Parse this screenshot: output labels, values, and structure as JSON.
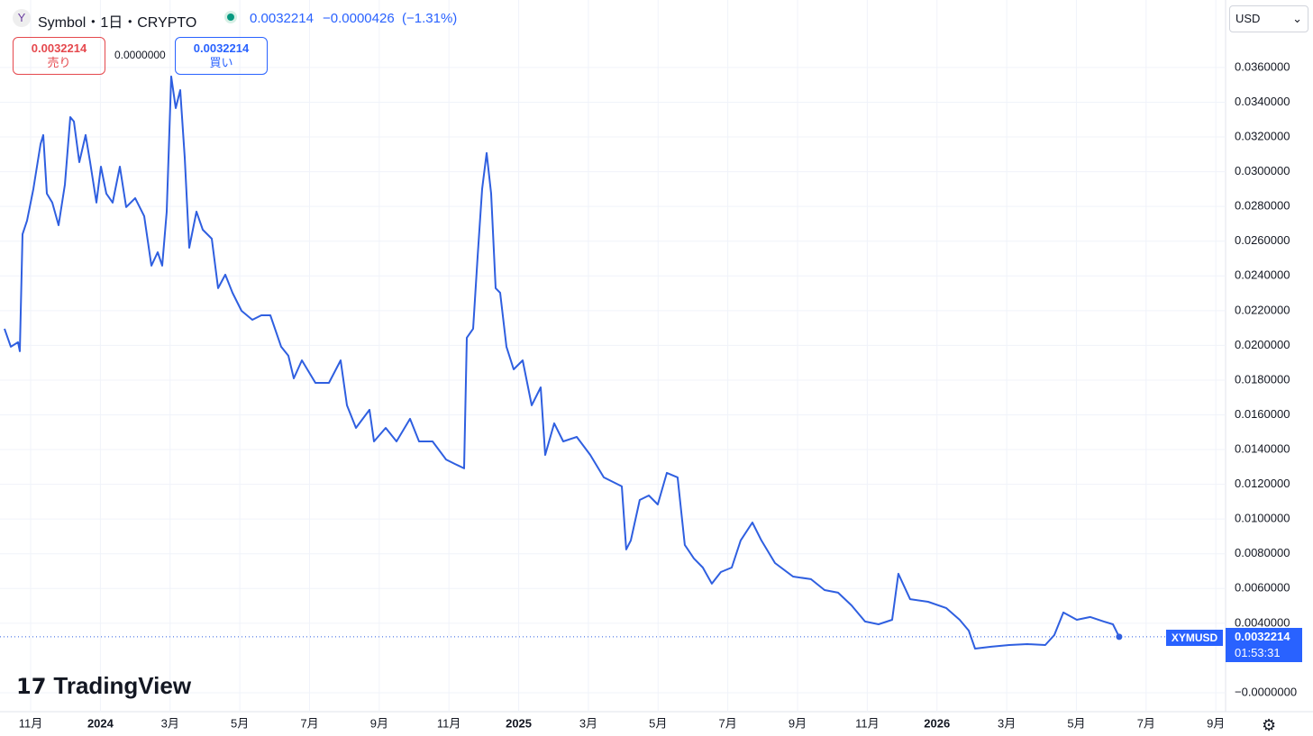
{
  "header": {
    "symbol": "Symbol・1日・CRYPTO",
    "change": "−0.0000426",
    "change_pct": "(−1.31%)",
    "sell": "売り",
    "buy": "買い",
    "spread": "0.0000000",
    "currency": "USD",
    "logo": "TradingView",
    "ticker": "XYMUSD",
    "countdown": "01:53:31"
  },
  "chart_data": {
    "type": "line",
    "last_price": 0.0032214,
    "series": [
      {
        "name": "XYMUSD",
        "color": "#2f5fe0",
        "x": [
          2023.7708,
          2023.7859,
          2023.8031,
          2023.8074,
          2023.8139,
          2023.8246,
          2023.8397,
          2023.8569,
          2023.8634,
          2023.872,
          2023.8849,
          2023.9,
          2023.9151,
          2023.928,
          2023.9367,
          2023.9496,
          2023.9647,
          2023.9754,
          2023.9905,
          2024.0013,
          2024.0142,
          2024.0293,
          2024.0465,
          2024.0616,
          2024.0831,
          2024.1047,
          2024.1219,
          2024.137,
          2024.1478,
          2024.1585,
          2024.1693,
          2024.1801,
          2024.1909,
          2024.2016,
          2024.2124,
          2024.2296,
          2024.2447,
          2024.2663,
          2024.2813,
          2024.2986,
          2024.3158,
          2024.3374,
          2024.3632,
          2024.3847,
          2024.4063,
          2024.4321,
          2024.4494,
          2024.4623,
          2024.4817,
          2024.514,
          2024.5463,
          2024.5743,
          2024.5894,
          2024.6109,
          2024.6433,
          2024.654,
          2024.682,
          2024.7079,
          2024.7402,
          2024.7617,
          2024.7941,
          2024.8264,
          2024.8479,
          2024.8695,
          2024.8759,
          2024.891,
          2024.9018,
          2024.9126,
          2024.9233,
          2024.9341,
          2024.9449,
          2024.9556,
          2024.9707,
          2024.988,
          2025.0095,
          2025.031,
          2025.0526,
          2025.0634,
          2025.0849,
          2025.1064,
          2025.1388,
          2025.1711,
          2025.2034,
          2025.2465,
          2025.2572,
          2025.268,
          2025.2895,
          2025.3111,
          2025.3326,
          2025.3542,
          2025.38,
          2025.3972,
          2025.4188,
          2025.4403,
          2025.4618,
          2025.4834,
          2025.5093,
          2025.5308,
          2025.5588,
          2025.5803,
          2025.6127,
          2025.6558,
          2025.6988,
          2025.7312,
          2025.7635,
          2025.7958,
          2025.8281,
          2025.8604,
          2025.8928,
          2025.9078,
          2025.9358,
          2025.9789,
          2026.022,
          2026.0543,
          2026.0759,
          2026.091,
          2026.1297,
          2026.1728,
          2026.2159,
          2026.259,
          2026.2805,
          2026.3021,
          2026.3344,
          2026.3667,
          2026.399,
          2026.4206,
          2026.4356
        ],
        "values": [
          0.02096,
          0.01992,
          0.02018,
          0.01966,
          0.0264,
          0.02718,
          0.029,
          0.03159,
          0.03211,
          0.02874,
          0.02822,
          0.02692,
          0.02925,
          0.03314,
          0.03289,
          0.03055,
          0.03211,
          0.03055,
          0.02822,
          0.03029,
          0.02874,
          0.02822,
          0.03029,
          0.02796,
          0.02848,
          0.02744,
          0.02459,
          0.02536,
          0.02459,
          0.0277,
          0.03548,
          0.03366,
          0.0347,
          0.03081,
          0.02562,
          0.0277,
          0.02666,
          0.02614,
          0.02329,
          0.02407,
          0.02303,
          0.02199,
          0.02147,
          0.02173,
          0.02173,
          0.01992,
          0.0194,
          0.0181,
          0.01914,
          0.01784,
          0.01784,
          0.01914,
          0.01655,
          0.01525,
          0.01629,
          0.01447,
          0.01525,
          0.01447,
          0.01577,
          0.01447,
          0.01447,
          0.01343,
          0.01317,
          0.01292,
          0.02044,
          0.02096,
          0.02511,
          0.029,
          0.03107,
          0.02874,
          0.02329,
          0.02303,
          0.01992,
          0.01862,
          0.01914,
          0.01655,
          0.01758,
          0.01369,
          0.01551,
          0.01447,
          0.01473,
          0.01369,
          0.0124,
          0.01188,
          0.00825,
          0.00877,
          0.0111,
          0.01136,
          0.01084,
          0.01266,
          0.0124,
          0.00851,
          0.00773,
          0.00721,
          0.00628,
          0.00695,
          0.00721,
          0.00877,
          0.0098,
          0.00877,
          0.00747,
          0.00669,
          0.00654,
          0.00591,
          0.00576,
          0.00503,
          0.0041,
          0.00394,
          0.0042,
          0.00685,
          0.00539,
          0.00524,
          0.00488,
          0.0042,
          0.00358,
          0.00254,
          0.00265,
          0.00275,
          0.0028,
          0.00275,
          0.00332,
          0.00462,
          0.0042,
          0.00436,
          0.0041,
          0.00394,
          0.0032214
        ]
      }
    ],
    "xlim": [
      2023.76,
      2026.69
    ],
    "ylim": [
      -0.00109,
      0.03781
    ],
    "xticks": [
      {
        "value": 2023.8333,
        "label": "11月"
      },
      2024,
      {
        "value": 2024.1667,
        "label": "3月"
      },
      {
        "value": 2024.3333,
        "label": "5月"
      },
      {
        "value": 2024.5,
        "label": "7月"
      },
      {
        "value": 2024.6667,
        "label": "9月"
      },
      {
        "value": 2024.8333,
        "label": "11月"
      },
      2025,
      {
        "value": 2025.1667,
        "label": "3月"
      },
      {
        "value": 2025.3333,
        "label": "5月"
      },
      {
        "value": 2025.5,
        "label": "7月"
      },
      {
        "value": 2025.6667,
        "label": "9月"
      },
      {
        "value": 2025.8333,
        "label": "11月"
      },
      2026,
      {
        "value": 2026.1667,
        "label": "3月"
      },
      {
        "value": 2026.3333,
        "label": "5月"
      },
      {
        "value": 2026.5,
        "label": "7月"
      },
      {
        "value": 2026.6667,
        "label": "9月"
      }
    ],
    "yticks": [
      {
        "value": 0,
        "label": "−0.0000000"
      },
      {
        "value": 0.004,
        "label": "0.0040000"
      },
      {
        "value": 0.006,
        "label": "0.0060000"
      },
      {
        "value": 0.008,
        "label": "0.0080000"
      },
      {
        "value": 0.01,
        "label": "0.0100000"
      },
      {
        "value": 0.012,
        "label": "0.0120000"
      },
      {
        "value": 0.014,
        "label": "0.0140000"
      },
      {
        "value": 0.016,
        "label": "0.0160000"
      },
      {
        "value": 0.018,
        "label": "0.0180000"
      },
      {
        "value": 0.02,
        "label": "0.0200000"
      },
      {
        "value": 0.022,
        "label": "0.0220000"
      },
      {
        "value": 0.024,
        "label": "0.0240000"
      },
      {
        "value": 0.026,
        "label": "0.0260000"
      },
      {
        "value": 0.028,
        "label": "0.0280000"
      },
      {
        "value": 0.03,
        "label": "0.0300000"
      },
      {
        "value": 0.032,
        "label": "0.0320000"
      },
      {
        "value": 0.034,
        "label": "0.0340000"
      },
      {
        "value": 0.036,
        "label": "0.0360000"
      }
    ],
    "grid": true
  }
}
